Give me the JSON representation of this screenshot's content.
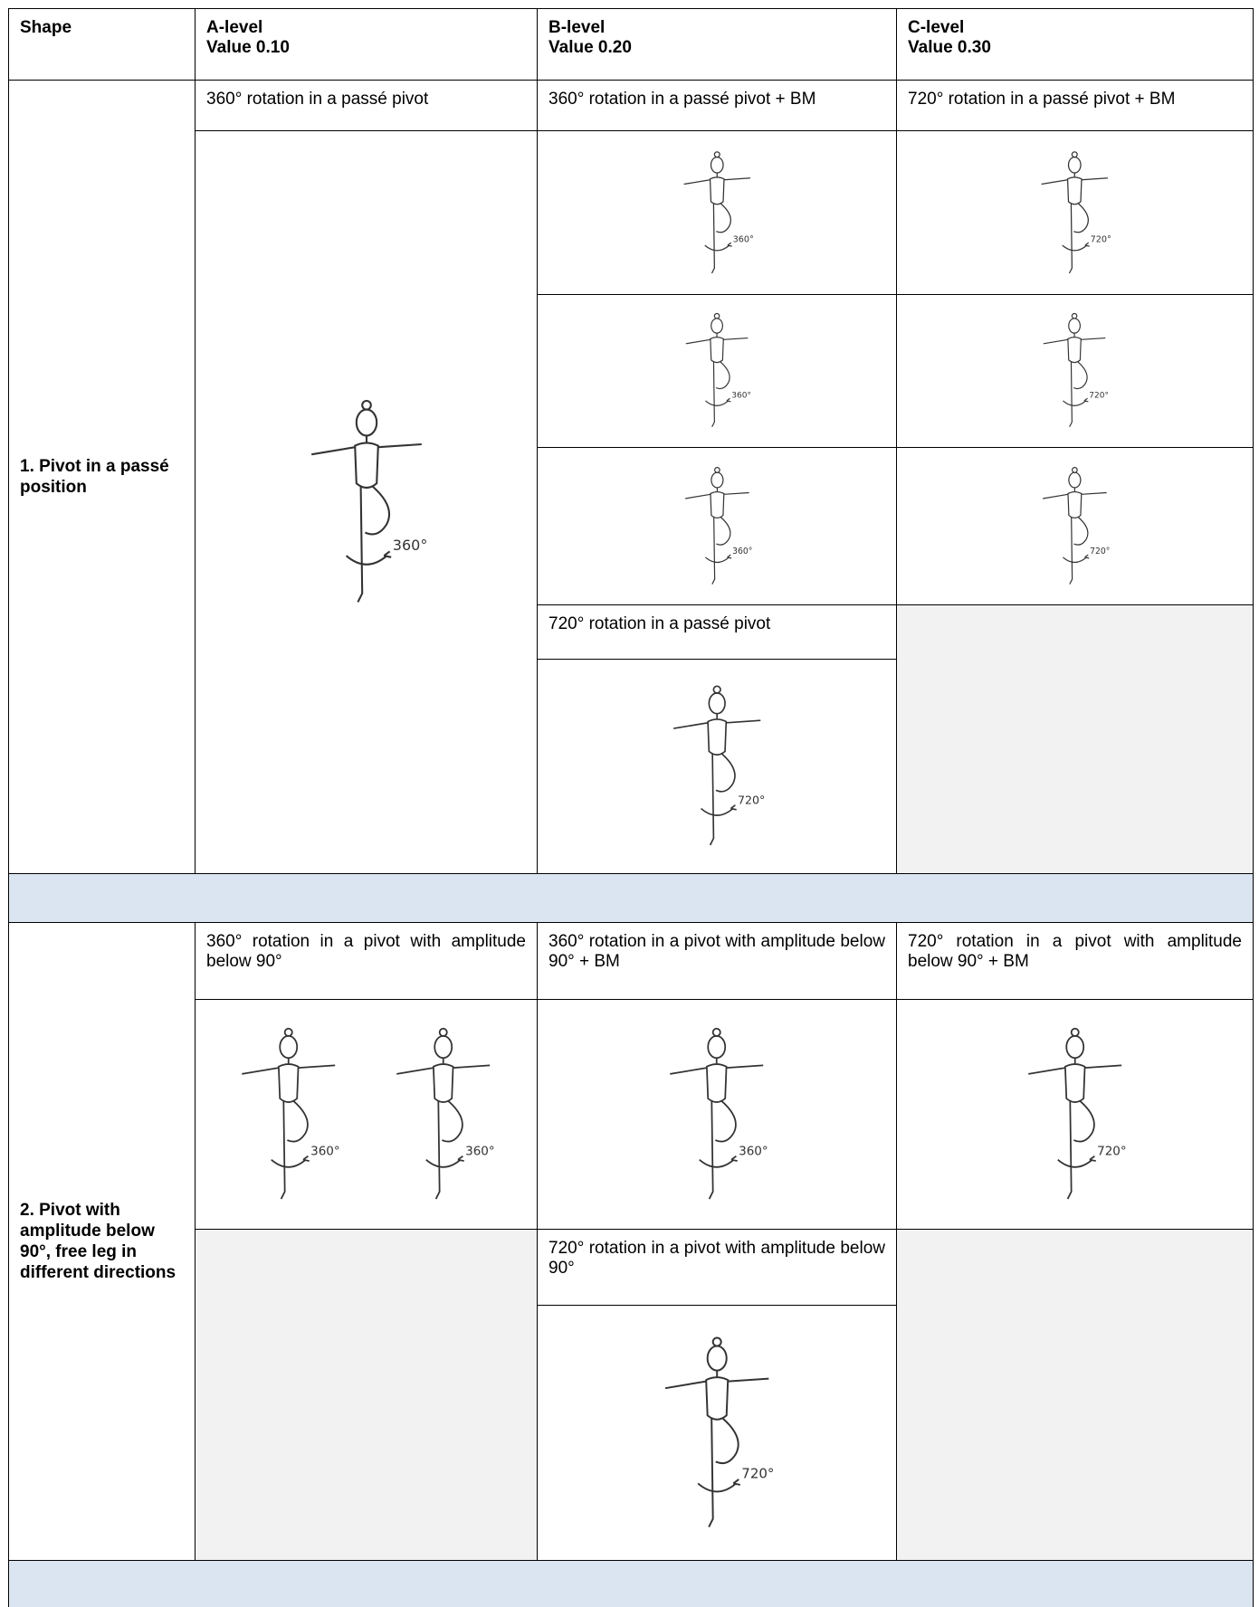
{
  "header": {
    "shape": "Shape",
    "levels": [
      {
        "level": "A-level",
        "value": "Value 0.10"
      },
      {
        "level": "B-level",
        "value": "Value 0.20"
      },
      {
        "level": "C-level",
        "value": "Value 0.30"
      }
    ]
  },
  "sections": [
    {
      "shape": "1. Pivot in a passé position",
      "elements": [
        {
          "text": "360° rotation in a passé pivot",
          "figures": [
            "360°"
          ]
        },
        {
          "text": "360° rotation in a passé pivot + BM",
          "figures": [
            "360°",
            "360°",
            "360°"
          ]
        },
        {
          "text": "720° rotation in a passé pivot + BM",
          "figures": [
            "720°",
            "720°",
            "720°"
          ]
        },
        {
          "text": "720° rotation in a passé pivot",
          "figures": [
            "720°"
          ]
        }
      ]
    },
    {
      "shape": "2. Pivot with amplitude below 90°, free leg in different directions",
      "elements": [
        {
          "text": "360° rotation in a pivot with amplitude below 90°",
          "figures": [
            "360°",
            "360°"
          ]
        },
        {
          "text": "360° rotation in a pivot with amplitude below 90° + BM",
          "figures": [
            "360°"
          ]
        },
        {
          "text": "720° rotation in a pivot with amplitude below 90° + BM",
          "figures": [
            "720°"
          ]
        },
        {
          "text": "720° rotation in a pivot with amplitude below 90°",
          "figures": [
            "720°"
          ]
        }
      ]
    }
  ]
}
